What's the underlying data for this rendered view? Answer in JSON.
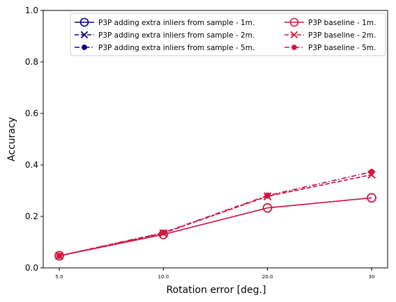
{
  "chart_data": {
    "type": "line",
    "title": "",
    "xlabel": "Rotation error [deg.]",
    "ylabel": "Accuracy",
    "categories": [
      "5.0",
      "10.0",
      "20.0",
      "30"
    ],
    "ylim": [
      0,
      1
    ],
    "yticks": [
      "0.0",
      "0.2",
      "0.4",
      "0.6",
      "0.8",
      "1.0"
    ],
    "grid": false,
    "legend_position": "top-right",
    "series": [
      {
        "name": "P3P adding extra inliers from sample - 1m.",
        "values": [
          0.047,
          0.13,
          0.233,
          0.272
        ],
        "color": "#00008b",
        "linestyle": "solid",
        "marker": "open-circle"
      },
      {
        "name": "P3P adding extra inliers from sample - 2m.",
        "values": [
          0.047,
          0.135,
          0.278,
          0.362
        ],
        "color": "#00008b",
        "linestyle": "dashed",
        "marker": "x"
      },
      {
        "name": "P3P adding extra inliers from sample - 5m.",
        "values": [
          0.047,
          0.137,
          0.281,
          0.373
        ],
        "color": "#00008b",
        "linestyle": "dashdot",
        "marker": "filled-circle"
      },
      {
        "name": "P3P baseline - 1m.",
        "values": [
          0.047,
          0.13,
          0.233,
          0.272
        ],
        "color": "#dc143c",
        "linestyle": "solid",
        "marker": "open-circle"
      },
      {
        "name": "P3P baseline - 2m.",
        "values": [
          0.047,
          0.135,
          0.278,
          0.362
        ],
        "color": "#dc143c",
        "linestyle": "dashed",
        "marker": "x"
      },
      {
        "name": "P3P baseline - 5m.",
        "values": [
          0.047,
          0.137,
          0.281,
          0.373
        ],
        "color": "#dc143c",
        "linestyle": "dashdot",
        "marker": "filled-circle"
      }
    ]
  }
}
